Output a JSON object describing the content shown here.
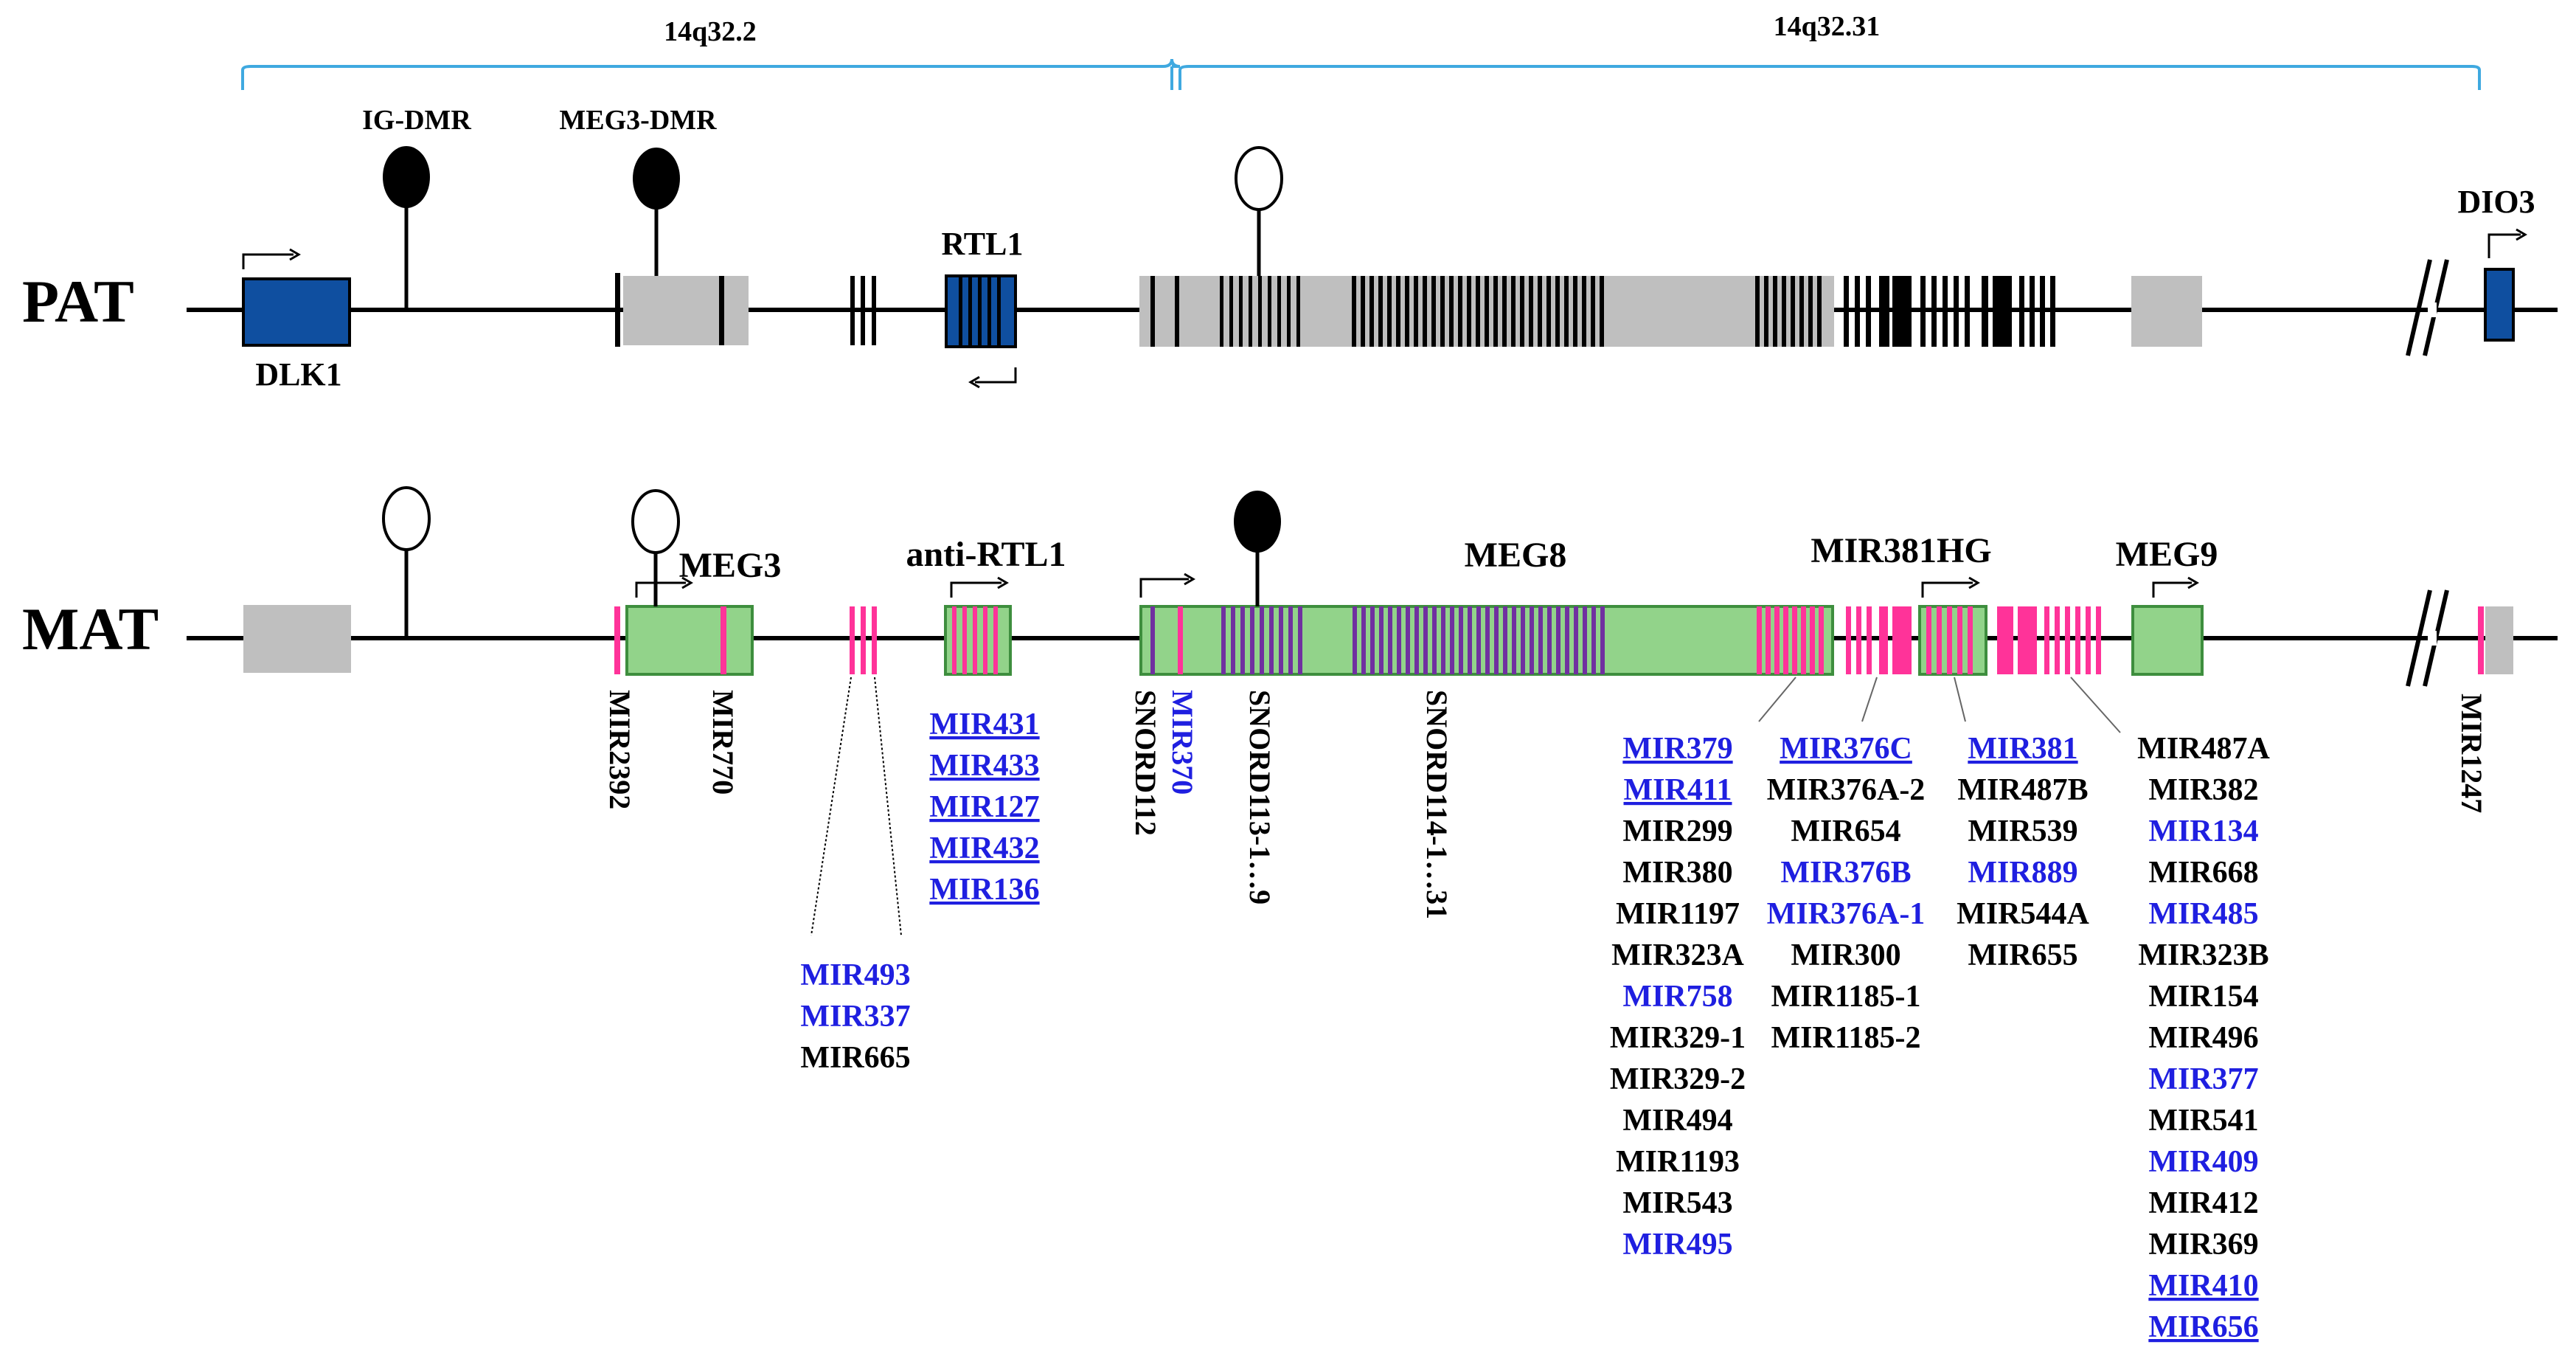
{
  "bands": {
    "left": "14q32.2",
    "right": "14q32.31"
  },
  "tracks": {
    "paternal": "PAT",
    "maternal": "MAT"
  },
  "dmrs": {
    "ig": "IG-DMR",
    "meg3": "MEG3-DMR"
  },
  "genes": {
    "dlk1": "DLK1",
    "rtl1": "RTL1",
    "dio3": "DIO3",
    "meg3": "MEG3",
    "anti_rtl1": "anti-RTL1",
    "meg8": "MEG8",
    "mir381hg": "MIR381HG",
    "meg9": "MEG9"
  },
  "vertical_labels": {
    "mir2392": "MIR2392",
    "mir770": "MIR770",
    "snord112": "SNORD112",
    "mir370": "MIR370",
    "snord113": "SNORD113-1…9",
    "snord114": "SNORD114-1…31",
    "mir1247": "MIR1247"
  },
  "mirna_lists": {
    "rtl1_group": [
      {
        "name": "MIR431",
        "color": "blue",
        "u": true
      },
      {
        "name": "MIR433",
        "color": "blue",
        "u": true
      },
      {
        "name": "MIR127",
        "color": "blue",
        "u": true
      },
      {
        "name": "MIR432",
        "color": "blue",
        "u": true
      },
      {
        "name": "MIR136",
        "color": "blue",
        "u": true
      }
    ],
    "mir493_group": [
      {
        "name": "MIR493",
        "color": "blue",
        "u": false
      },
      {
        "name": "MIR337",
        "color": "blue",
        "u": false
      },
      {
        "name": "MIR665",
        "color": "black",
        "u": false
      }
    ],
    "mir379_group": [
      {
        "name": "MIR379",
        "color": "blue",
        "u": true
      },
      {
        "name": "MIR411",
        "color": "blue",
        "u": true
      },
      {
        "name": "MIR299",
        "color": "black",
        "u": false
      },
      {
        "name": "MIR380",
        "color": "black",
        "u": false
      },
      {
        "name": "MIR1197",
        "color": "black",
        "u": false
      },
      {
        "name": "MIR323A",
        "color": "black",
        "u": false
      },
      {
        "name": "MIR758",
        "color": "blue",
        "u": false
      },
      {
        "name": "MIR329-1",
        "color": "black",
        "u": false
      },
      {
        "name": "MIR329-2",
        "color": "black",
        "u": false
      },
      {
        "name": "MIR494",
        "color": "black",
        "u": false
      },
      {
        "name": "MIR1193",
        "color": "black",
        "u": false
      },
      {
        "name": "MIR543",
        "color": "black",
        "u": false
      },
      {
        "name": "MIR495",
        "color": "blue",
        "u": false
      }
    ],
    "mir376c_group": [
      {
        "name": "MIR376C",
        "color": "blue",
        "u": true
      },
      {
        "name": "MIR376A-2",
        "color": "black",
        "u": false
      },
      {
        "name": "MIR654",
        "color": "black",
        "u": false
      },
      {
        "name": "MIR376B",
        "color": "blue",
        "u": false
      },
      {
        "name": "MIR376A-1",
        "color": "blue",
        "u": false
      },
      {
        "name": "MIR300",
        "color": "black",
        "u": false
      },
      {
        "name": "MIR1185-1",
        "color": "black",
        "u": false
      },
      {
        "name": "MIR1185-2",
        "color": "black",
        "u": false
      }
    ],
    "mir381_group": [
      {
        "name": "MIR381",
        "color": "blue",
        "u": true
      },
      {
        "name": "MIR487B",
        "color": "black",
        "u": false
      },
      {
        "name": "MIR539",
        "color": "black",
        "u": false
      },
      {
        "name": "MIR889",
        "color": "blue",
        "u": false
      },
      {
        "name": "MIR544A",
        "color": "black",
        "u": false
      },
      {
        "name": "MIR655",
        "color": "black",
        "u": false
      }
    ],
    "mir487a_group": [
      {
        "name": "MIR487A",
        "color": "black",
        "u": false
      },
      {
        "name": "MIR382",
        "color": "black",
        "u": false
      },
      {
        "name": "MIR134",
        "color": "blue",
        "u": false
      },
      {
        "name": "MIR668",
        "color": "black",
        "u": false
      },
      {
        "name": "MIR485",
        "color": "blue",
        "u": false
      },
      {
        "name": "MIR323B",
        "color": "black",
        "u": false
      },
      {
        "name": "MIR154",
        "color": "black",
        "u": false
      },
      {
        "name": "MIR496",
        "color": "black",
        "u": false
      },
      {
        "name": "MIR377",
        "color": "blue",
        "u": false
      },
      {
        "name": "MIR541",
        "color": "black",
        "u": false
      },
      {
        "name": "MIR409",
        "color": "blue",
        "u": false
      },
      {
        "name": "MIR412",
        "color": "black",
        "u": false
      },
      {
        "name": "MIR369",
        "color": "black",
        "u": false
      },
      {
        "name": "MIR410",
        "color": "blue",
        "u": true
      },
      {
        "name": "MIR656",
        "color": "blue",
        "u": true
      }
    ]
  },
  "colors": {
    "blue_gene": "#0F4FA0",
    "grey_box": "#BFBFBF",
    "green_box": "#92D38A",
    "pink": "#FF3399",
    "purple": "#7030A0",
    "band_blue": "#3FA9E0",
    "text_blue": "#1F1FE0"
  }
}
